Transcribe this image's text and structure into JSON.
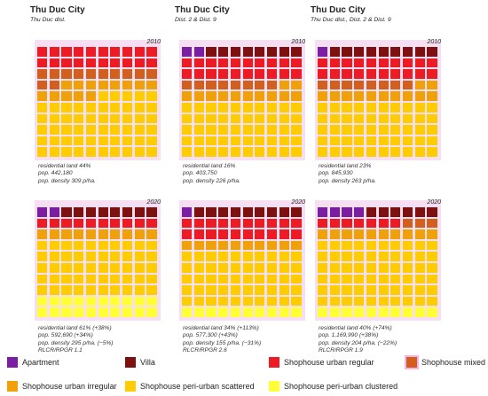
{
  "colors": {
    "apartment": "#7b1ea2",
    "villa": "#7e1010",
    "urban_regular": "#ed1c24",
    "mixed": "#d35f1f",
    "urban_irregular": "#f0a10a",
    "peri_scattered": "#ffcc00",
    "peri_clustered": "#ffff33"
  },
  "chart_data": {
    "type": "waffle",
    "units": "share of housing stock in 10x10 grid (cells)",
    "panels": [
      {
        "id": "p2010a",
        "city": "Thu Duc City",
        "subtitle": "Thu Duc dist.",
        "year": "2010",
        "counts": {
          "apartment": 0,
          "villa": 0,
          "urban_regular": 20,
          "mixed": 12,
          "urban_irregular": 13,
          "peri_scattered": 55,
          "peri_clustered": 0
        },
        "stats": [
          "residential land 44%",
          "pop. 442,180",
          "pop. density 309 p/ha."
        ]
      },
      {
        "id": "p2010b",
        "city": "Thu Duc City",
        "subtitle": "Dist. 2 & Dist. 9",
        "year": "2010",
        "counts": {
          "apartment": 2,
          "villa": 8,
          "urban_regular": 20,
          "mixed": 8,
          "urban_irregular": 12,
          "peri_scattered": 50,
          "peri_clustered": 0
        },
        "stats": [
          "residential land 16%",
          "pop. 403,750",
          "pop. density 226 p/ha."
        ]
      },
      {
        "id": "p2010c",
        "city": "Thu Duc City",
        "subtitle": "Thu Duc dist., Dist. 2 & Dist. 9",
        "year": "2010",
        "counts": {
          "apartment": 1,
          "villa": 9,
          "urban_regular": 20,
          "mixed": 8,
          "urban_irregular": 12,
          "peri_scattered": 50,
          "peri_clustered": 0
        },
        "stats": [
          "residential land 23%",
          "pop. 845,930",
          "pop. density 263 p/ha."
        ]
      },
      {
        "id": "p2020a",
        "city": "",
        "subtitle": "",
        "year": "2020",
        "counts": {
          "apartment": 2,
          "villa": 8,
          "urban_regular": 10,
          "mixed": 0,
          "urban_irregular": 10,
          "peri_scattered": 50,
          "peri_clustered": 20
        },
        "stats": [
          "residential land 61% (+38%)",
          "pop. 592,690 (+34%)",
          "pop. density 295 p/ha. (−5%)",
          "RLCR/RPGR 1.1"
        ]
      },
      {
        "id": "p2020b",
        "city": "",
        "subtitle": "",
        "year": "2020",
        "counts": {
          "apartment": 1,
          "villa": 9,
          "urban_regular": 20,
          "mixed": 0,
          "urban_irregular": 10,
          "peri_scattered": 50,
          "peri_clustered": 10
        },
        "stats": [
          "residential land 34% (+113%)",
          "pop. 577,300 (+43%)",
          "pop. density 155 p/ha. (−31%)",
          "RLCR/RPGR 2.6"
        ]
      },
      {
        "id": "p2020c",
        "city": "",
        "subtitle": "",
        "year": "2020",
        "counts": {
          "apartment": 4,
          "villa": 6,
          "urban_regular": 7,
          "mixed": 3,
          "urban_irregular": 10,
          "peri_scattered": 60,
          "peri_clustered": 10
        },
        "stats": [
          "residential land 40% (+74%)",
          "pop. 1,169,990 (+38%)",
          "pop. density 204 p/ha. (−22%)",
          "RLCR/RPGR 1.9"
        ]
      }
    ],
    "legend": [
      {
        "key": "apartment",
        "label": "Apartment"
      },
      {
        "key": "villa",
        "label": "Villa"
      },
      {
        "key": "urban_regular",
        "label": "Shophouse urban regular"
      },
      {
        "key": "mixed",
        "label": "Shophouse mixed"
      },
      {
        "key": "urban_irregular",
        "label": "Shophouse urban irregular"
      },
      {
        "key": "peri_scattered",
        "label": "Shophouse peri-urban scattered"
      },
      {
        "key": "peri_clustered",
        "label": "Shophouse peri-urban clustered"
      }
    ]
  }
}
